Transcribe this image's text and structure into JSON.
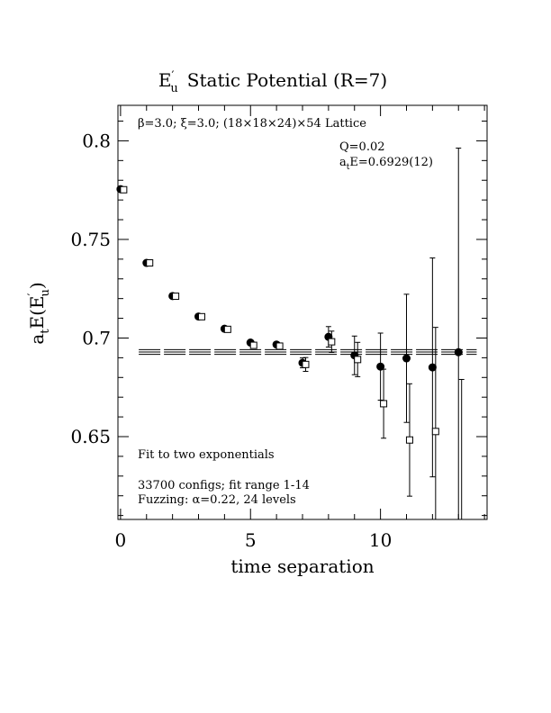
{
  "chart_data": {
    "type": "scatter",
    "title_main": "E",
    "title_prime": "′",
    "title_sub": "u",
    "title_rest": "Static Potential (R=7)",
    "lattice_text": "β=3.0; ξ=3.0; (18×18×24)×54 Lattice",
    "q_text": "Q=0.02",
    "energy_prefix": "a",
    "energy_sub": "t",
    "energy_rest": "E=0.6929(12)",
    "fit_text": "Fit to two exponentials",
    "configs_text": "33700 configs; fit range 1-14",
    "fuzzing_text": "Fuzzing: α=0.22, 24 levels",
    "xlabel": "time separation",
    "ylabel_a": "a",
    "ylabel_t": "t",
    "ylabel_E": "E(E",
    "ylabel_prime": "′",
    "ylabel_u": "u",
    "ylabel_close": ")",
    "xlim": [
      -0.1,
      14.1
    ],
    "ylim": [
      0.608,
      0.818
    ],
    "x_ticks": [
      0,
      5,
      10
    ],
    "x_tick_labels": [
      "0",
      "5",
      "10"
    ],
    "y_ticks": [
      0.65,
      0.7,
      0.75,
      0.8
    ],
    "y_tick_labels": [
      "0.65",
      "0.7",
      "0.75",
      "0.8"
    ],
    "fit": {
      "value": 0.6929,
      "error": 0.0012
    },
    "series": [
      {
        "marker": "filled-circle",
        "points": [
          {
            "x": 0,
            "y": 0.7755,
            "err": 0.0008
          },
          {
            "x": 1,
            "y": 0.7381,
            "err": 0.0008
          },
          {
            "x": 2,
            "y": 0.7213,
            "err": 0.0008
          },
          {
            "x": 3,
            "y": 0.7109,
            "err": 0.0008
          },
          {
            "x": 4,
            "y": 0.7047,
            "err": 0.001
          },
          {
            "x": 5,
            "y": 0.6977,
            "err": 0.001
          },
          {
            "x": 6,
            "y": 0.6967,
            "err": 0.0012
          },
          {
            "x": 7,
            "y": 0.6874,
            "err": 0.0025
          },
          {
            "x": 8,
            "y": 0.7006,
            "err": 0.0052
          },
          {
            "x": 9,
            "y": 0.6912,
            "err": 0.0098
          },
          {
            "x": 10,
            "y": 0.6855,
            "err": 0.017
          },
          {
            "x": 11,
            "y": 0.6897,
            "err": 0.0325
          },
          {
            "x": 12,
            "y": 0.6851,
            "err": 0.0555
          },
          {
            "x": 13,
            "y": 0.6928,
            "err": 0.1035
          }
        ]
      },
      {
        "marker": "open-square",
        "points": [
          {
            "x": 0.12,
            "y": 0.7752,
            "err": 0.0008
          },
          {
            "x": 1.12,
            "y": 0.7381,
            "err": 0.0008
          },
          {
            "x": 2.12,
            "y": 0.7212,
            "err": 0.0008
          },
          {
            "x": 3.12,
            "y": 0.7108,
            "err": 0.0008
          },
          {
            "x": 4.12,
            "y": 0.7044,
            "err": 0.001
          },
          {
            "x": 5.12,
            "y": 0.6963,
            "err": 0.001
          },
          {
            "x": 6.12,
            "y": 0.6959,
            "err": 0.0012
          },
          {
            "x": 7.12,
            "y": 0.6866,
            "err": 0.0035
          },
          {
            "x": 8.12,
            "y": 0.6981,
            "err": 0.0054
          },
          {
            "x": 9.12,
            "y": 0.6891,
            "err": 0.0087
          },
          {
            "x": 10.12,
            "y": 0.6667,
            "err": 0.0175
          },
          {
            "x": 11.12,
            "y": 0.6483,
            "err": 0.0285
          },
          {
            "x": 12.12,
            "y": 0.6526,
            "err": 0.0528
          },
          {
            "x": 13.12,
            "y": 0.6,
            "err": 0.079
          }
        ]
      }
    ]
  }
}
